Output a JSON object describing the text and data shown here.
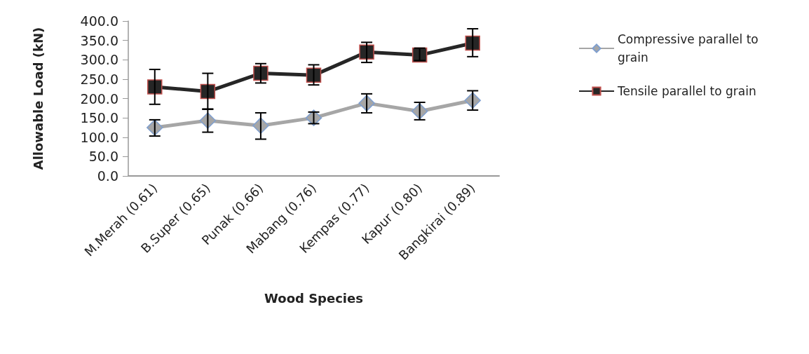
{
  "chart_data": {
    "type": "line",
    "xlabel": "Wood Species",
    "ylabel": "Allowable Load (kN)",
    "categories": [
      "M.Merah (0.61)",
      "B.Super (0.65)",
      "Punak (0.66)",
      "Mabang (0.76)",
      "Kempas (0.77)",
      "Kapur (0.80)",
      "Bangkirai (0.89)"
    ],
    "series": [
      {
        "name": "Compressive parallel to grain",
        "color": "#a6a6a6",
        "marker": "diamond",
        "values": [
          125,
          143,
          130,
          150,
          188,
          167,
          195
        ],
        "errors": [
          [
            103,
            145
          ],
          [
            113,
            172
          ],
          [
            95,
            163
          ],
          [
            135,
            165
          ],
          [
            163,
            212
          ],
          [
            145,
            190
          ],
          [
            170,
            220
          ]
        ]
      },
      {
        "name": "Tensile parallel to grain",
        "color": "#262626",
        "marker": "square",
        "values": [
          230,
          218,
          265,
          260,
          320,
          312,
          343
        ],
        "errors": [
          [
            185,
            275
          ],
          [
            173,
            265
          ],
          [
            240,
            290
          ],
          [
            235,
            287
          ],
          [
            293,
            345
          ],
          [
            298,
            330
          ],
          [
            308,
            380
          ]
        ]
      }
    ],
    "ylim": [
      0,
      400
    ],
    "yticks": [
      {
        "value": 0,
        "label": "0.0"
      },
      {
        "value": 50,
        "label": "50.0"
      },
      {
        "value": 100,
        "label": "100.0"
      },
      {
        "value": 150,
        "label": "150.0"
      },
      {
        "value": 200,
        "label": "200.0"
      },
      {
        "value": 250,
        "label": "250.0"
      },
      {
        "value": 300,
        "label": "300.0"
      },
      {
        "value": 350,
        "label": "350.0"
      },
      {
        "value": 400,
        "label": "400.0"
      }
    ],
    "grid": false,
    "legend": "right"
  }
}
